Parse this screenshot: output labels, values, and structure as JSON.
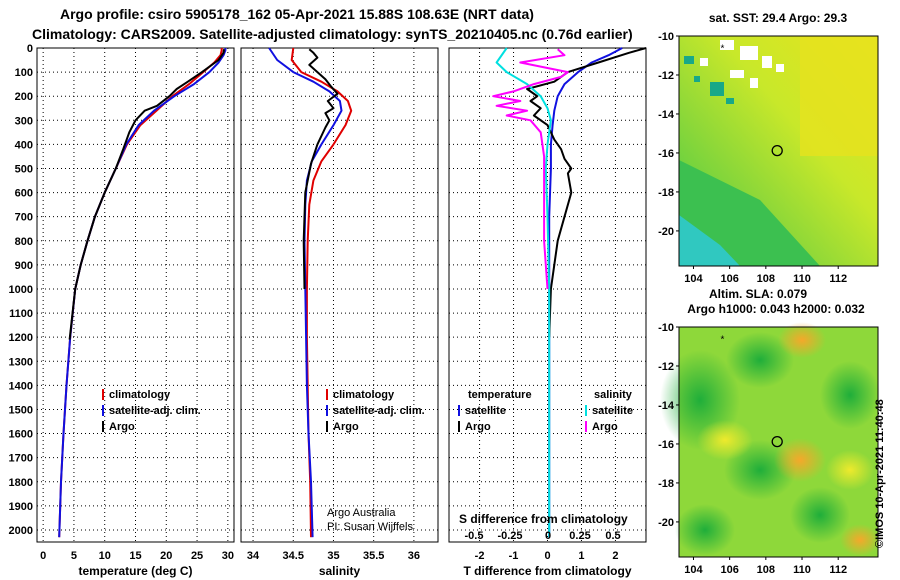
{
  "header": {
    "line1": "Argo profile: csiro 5905178_162 05-Apr-2021 15.88S 108.63E (NRT data)",
    "line2": "Climatology: CARS2009. Satellite-adjusted climatology: synTS_20210405.nc (0.76d earlier)"
  },
  "credit": "©IMOS 10-Apr-2021 11:40:48",
  "colors": {
    "climatology": "#e00000",
    "satellite": "#1010e0",
    "argo": "#000000",
    "sal_satellite": "#00e0e0",
    "sal_argo": "#ff00ff"
  },
  "chart_data": [
    {
      "type": "line",
      "id": "temperature",
      "xlabel": "temperature (deg C)",
      "ylabel": "",
      "ylim": [
        0,
        2050
      ],
      "xlim": [
        -1,
        31
      ],
      "xticks": [
        0,
        5,
        10,
        15,
        20,
        25,
        30
      ],
      "yticks": [
        0,
        100,
        200,
        300,
        400,
        500,
        600,
        700,
        800,
        900,
        1000,
        1100,
        1200,
        1300,
        1400,
        1500,
        1600,
        1700,
        1800,
        1900,
        2000
      ],
      "legend": [
        "climatology",
        "satellite-adj. clim.",
        "Argo"
      ],
      "series": [
        {
          "name": "climatology",
          "color": "#e00000",
          "x": [
            2.6,
            2.9,
            3.3,
            3.8,
            4.4,
            5.2,
            6.1,
            7.2,
            8.4,
            10.0,
            11.8,
            13.6,
            15.8,
            18.4,
            21.0,
            23.7,
            26.0,
            27.8,
            28.8,
            29.0,
            29.0
          ],
          "y": [
            2030,
            1800,
            1600,
            1400,
            1200,
            1000,
            900,
            800,
            700,
            600,
            500,
            400,
            320,
            260,
            200,
            150,
            100,
            60,
            30,
            10,
            0
          ]
        },
        {
          "name": "satellite-adj. clim.",
          "color": "#1010e0",
          "x": [
            2.6,
            2.9,
            3.3,
            3.8,
            4.4,
            5.2,
            6.1,
            7.2,
            8.4,
            10.0,
            11.8,
            13.5,
            15.5,
            18.0,
            21.3,
            24.5,
            27.0,
            28.5,
            29.3,
            29.6,
            29.6
          ],
          "y": [
            2030,
            1800,
            1600,
            1400,
            1200,
            1000,
            900,
            800,
            700,
            600,
            500,
            400,
            320,
            260,
            200,
            150,
            100,
            60,
            30,
            10,
            0
          ]
        },
        {
          "name": "Argo",
          "color": "#000000",
          "x": [
            4.3,
            5.2,
            6.1,
            7.2,
            8.4,
            10.0,
            11.8,
            13.0,
            14.0,
            15.0,
            16.5,
            18.5,
            20.5,
            21.7,
            23.5,
            25.8,
            28.5,
            29.3,
            29.4
          ],
          "y": [
            1210,
            1000,
            900,
            800,
            700,
            600,
            500,
            420,
            350,
            300,
            260,
            240,
            200,
            170,
            140,
            100,
            50,
            20,
            5
          ]
        }
      ]
    },
    {
      "type": "line",
      "id": "salinity",
      "xlabel": "salinity",
      "ylabel": "",
      "ylim": [
        0,
        2050
      ],
      "xlim": [
        33.85,
        36.3
      ],
      "xticks": [
        34,
        34.5,
        35,
        35.5,
        36
      ],
      "xtick_labels": [
        "34",
        "34.5",
        "35",
        "35.5",
        "36"
      ],
      "legend": [
        "climatology",
        "satellite-adj. clim.",
        "Argo"
      ],
      "annotations": [
        "Argo Australia",
        "PI: Susan Wijffels"
      ],
      "series": [
        {
          "name": "climatology",
          "color": "#e00000",
          "x": [
            34.72,
            34.71,
            34.69,
            34.68,
            34.67,
            34.67,
            34.68,
            34.7,
            34.75,
            34.85,
            35.0,
            35.15,
            35.22,
            35.18,
            35.05,
            34.85,
            34.6,
            34.48,
            34.5
          ],
          "y": [
            2030,
            1800,
            1600,
            1400,
            1200,
            1000,
            800,
            650,
            550,
            470,
            400,
            320,
            260,
            220,
            180,
            140,
            100,
            50,
            0
          ]
        },
        {
          "name": "satellite-adj. clim.",
          "color": "#1010e0",
          "x": [
            34.74,
            34.72,
            34.69,
            34.67,
            34.66,
            34.65,
            34.64,
            34.65,
            34.67,
            34.73,
            34.85,
            35.0,
            35.1,
            35.08,
            34.95,
            34.75,
            34.5,
            34.3,
            34.2
          ],
          "y": [
            2030,
            1800,
            1600,
            1400,
            1200,
            1000,
            800,
            650,
            550,
            470,
            400,
            320,
            260,
            220,
            180,
            140,
            100,
            50,
            0
          ]
        },
        {
          "name": "Argo",
          "color": "#000000",
          "x": [
            34.64,
            34.63,
            34.65,
            34.72,
            34.8,
            34.9,
            34.95,
            34.9,
            35.0,
            34.93,
            35.05,
            34.97,
            34.9,
            34.8,
            34.7,
            34.8,
            34.75,
            34.7
          ],
          "y": [
            1000,
            800,
            600,
            480,
            400,
            330,
            300,
            270,
            250,
            220,
            190,
            160,
            130,
            100,
            70,
            40,
            20,
            5
          ]
        }
      ]
    },
    {
      "type": "line",
      "id": "difference",
      "xlabel": "T difference from climatology",
      "ylabel": "",
      "ylim": [
        0,
        2050
      ],
      "xlim": [
        -2.9,
        2.9
      ],
      "xticks": [
        -2,
        -1,
        0,
        1,
        2
      ],
      "secondary_title": "S difference from climatology",
      "secondary_ticks": [
        "-0.5",
        "-0.25",
        "0",
        "0.25",
        "0.5"
      ],
      "legend_temperature_title": "temperature",
      "legend_salinity_title": "salinity",
      "legend": [
        "satellite",
        "Argo",
        "satellite",
        "Argo"
      ],
      "series": [
        {
          "name": "temperature satellite",
          "color": "#1010e0",
          "x": [
            0.05,
            0.05,
            0.05,
            0.05,
            0.1,
            0.1,
            0.15,
            0.2,
            0.3,
            0.5,
            0.9,
            1.3,
            1.8,
            2.2
          ],
          "y": [
            2030,
            1500,
            1000,
            700,
            500,
            400,
            320,
            260,
            200,
            150,
            100,
            60,
            30,
            0
          ]
        },
        {
          "name": "temperature Argo",
          "color": "#000000",
          "x": [
            0.05,
            0.1,
            0.3,
            0.5,
            0.7,
            0.6,
            0.7,
            0.5,
            0.4,
            0.2,
            0.0,
            -0.4,
            -0.2,
            -0.5,
            -0.3,
            -0.6,
            0.2,
            0.6,
            1.5,
            2.4,
            2.9
          ],
          "y": [
            1200,
            1000,
            800,
            700,
            600,
            520,
            500,
            460,
            420,
            380,
            320,
            280,
            250,
            220,
            200,
            170,
            140,
            100,
            60,
            20,
            0
          ]
        },
        {
          "name": "salinity satellite",
          "color": "#00e0e0",
          "x": [
            0.05,
            0.05,
            0.05,
            0.0,
            -0.05,
            0.0,
            0.1,
            0.0,
            -0.2,
            -0.6,
            -1.2,
            -1.5,
            -1.2
          ],
          "y": [
            2030,
            1500,
            1000,
            700,
            500,
            400,
            300,
            250,
            200,
            150,
            100,
            60,
            0
          ]
        },
        {
          "name": "salinity Argo",
          "color": "#ff00ff",
          "x": [
            0.0,
            -0.1,
            -0.1,
            -0.1,
            -0.2,
            -0.5,
            -1.2,
            -0.6,
            -1.5,
            -0.8,
            -1.6,
            -1.0,
            -0.4,
            0.4,
            0.6,
            -0.8,
            0.5,
            0.3
          ],
          "y": [
            1000,
            800,
            600,
            450,
            350,
            300,
            280,
            260,
            240,
            220,
            200,
            180,
            150,
            120,
            100,
            60,
            30,
            5
          ]
        }
      ]
    },
    {
      "type": "heatmap",
      "id": "sst-map",
      "title": "sat. SST: 29.4 Argo: 29.3",
      "xticks": [
        104,
        106,
        108,
        110,
        112
      ],
      "yticks": [
        -10,
        -12,
        -14,
        -16,
        -18,
        -20
      ],
      "xlim": [
        103.2,
        114.2
      ],
      "ylim": [
        -21.8,
        -10
      ],
      "argo_position": [
        108.63,
        -15.88
      ],
      "marker_position": [
        105.6,
        -10.6
      ]
    },
    {
      "type": "heatmap",
      "id": "sla-map",
      "title": "Altim. SLA: 0.079",
      "subtitle": "Argo h1000: 0.043 h2000: 0.032",
      "xticks": [
        104,
        106,
        108,
        110,
        112
      ],
      "yticks": [
        -10,
        -12,
        -14,
        -16,
        -18,
        -20
      ],
      "xlim": [
        103.2,
        114.2
      ],
      "ylim": [
        -21.8,
        -10
      ],
      "argo_position": [
        108.63,
        -15.88
      ],
      "marker_position": [
        105.6,
        -10.6
      ]
    }
  ]
}
